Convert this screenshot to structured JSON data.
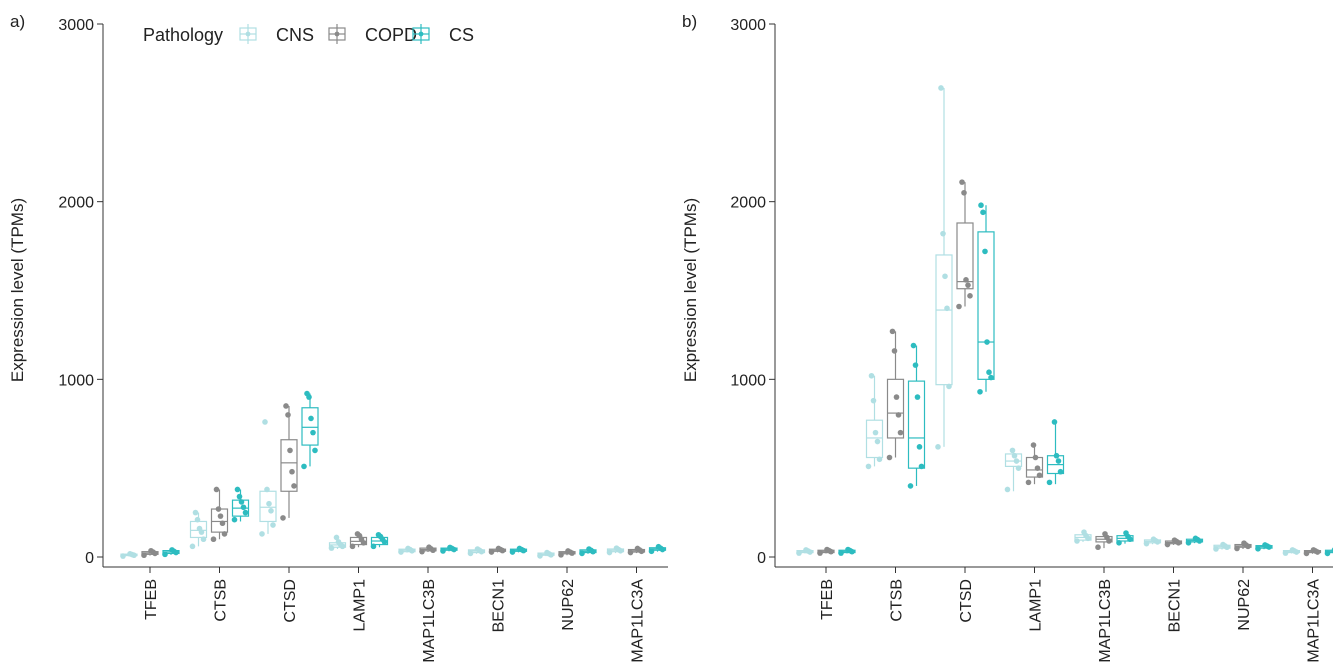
{
  "legend": {
    "title": "Pathology",
    "entries": [
      "CNS",
      "COPD",
      "CS"
    ]
  },
  "colors": {
    "CNS": "#b0dfe3",
    "COPD": "#8a8a8a",
    "CS": "#2dbcc0",
    "axis": "#333333"
  },
  "chart_data": [
    {
      "type": "box",
      "panel_label": "a)",
      "ylabel": "Expression level (TPMs)",
      "ylim": [
        0,
        3000
      ],
      "yticks": [
        "0",
        "1000",
        "2000",
        "3000"
      ],
      "categories": [
        "TFEB",
        "CTSB",
        "CTSD",
        "LAMP1",
        "MAP1LC3B",
        "BECN1",
        "NUP62",
        "MAP1LC3A"
      ],
      "series": [
        {
          "name": "CNS",
          "boxes": [
            {
              "q1": 8,
              "median": 12,
              "q3": 16,
              "whisker_low": 3,
              "whisker_high": 20,
              "points": [
                5,
                10,
                14,
                18
              ]
            },
            {
              "q1": 110,
              "median": 150,
              "q3": 200,
              "whisker_low": 60,
              "whisker_high": 250,
              "points": [
                60,
                100,
                140,
                160,
                210,
                250
              ]
            },
            {
              "q1": 200,
              "median": 280,
              "q3": 370,
              "whisker_low": 130,
              "whisker_high": 390,
              "points": [
                130,
                180,
                260,
                300,
                380,
                760
              ]
            },
            {
              "q1": 55,
              "median": 68,
              "q3": 80,
              "whisker_low": 45,
              "whisker_high": 90,
              "points": [
                50,
                60,
                70,
                85,
                110
              ]
            },
            {
              "q1": 30,
              "median": 38,
              "q3": 44,
              "whisker_low": 25,
              "whisker_high": 50,
              "points": [
                28,
                35,
                42,
                48
              ]
            },
            {
              "q1": 25,
              "median": 33,
              "q3": 40,
              "whisker_low": 18,
              "whisker_high": 48,
              "points": [
                20,
                30,
                38,
                45
              ]
            },
            {
              "q1": 10,
              "median": 15,
              "q3": 22,
              "whisker_low": 5,
              "whisker_high": 28,
              "points": [
                6,
                12,
                18,
                25
              ]
            },
            {
              "q1": 30,
              "median": 38,
              "q3": 45,
              "whisker_low": 22,
              "whisker_high": 52,
              "points": [
                25,
                35,
                42,
                50
              ]
            }
          ]
        },
        {
          "name": "COPD",
          "boxes": [
            {
              "q1": 15,
              "median": 22,
              "q3": 30,
              "whisker_low": 8,
              "whisker_high": 38,
              "points": [
                10,
                20,
                28,
                35
              ]
            },
            {
              "q1": 140,
              "median": 200,
              "q3": 270,
              "whisker_low": 100,
              "whisker_high": 380,
              "points": [
                100,
                130,
                190,
                230,
                270,
                380
              ]
            },
            {
              "q1": 370,
              "median": 530,
              "q3": 660,
              "whisker_low": 220,
              "whisker_high": 850,
              "points": [
                220,
                400,
                480,
                600,
                800,
                850
              ]
            },
            {
              "q1": 70,
              "median": 88,
              "q3": 110,
              "whisker_low": 55,
              "whisker_high": 130,
              "points": [
                60,
                80,
                100,
                120,
                130
              ]
            },
            {
              "q1": 35,
              "median": 42,
              "q3": 50,
              "whisker_low": 28,
              "whisker_high": 58,
              "points": [
                30,
                38,
                46,
                55
              ]
            },
            {
              "q1": 32,
              "median": 38,
              "q3": 44,
              "whisker_low": 26,
              "whisker_high": 50,
              "points": [
                28,
                36,
                42,
                48
              ]
            },
            {
              "q1": 18,
              "median": 24,
              "q3": 30,
              "whisker_low": 10,
              "whisker_high": 36,
              "points": [
                12,
                22,
                28,
                34
              ]
            },
            {
              "q1": 28,
              "median": 35,
              "q3": 42,
              "whisker_low": 22,
              "whisker_high": 50,
              "points": [
                25,
                32,
                40,
                48
              ]
            }
          ]
        },
        {
          "name": "CS",
          "boxes": [
            {
              "q1": 20,
              "median": 28,
              "q3": 36,
              "whisker_low": 12,
              "whisker_high": 44,
              "points": [
                15,
                25,
                32,
                40
              ]
            },
            {
              "q1": 230,
              "median": 275,
              "q3": 320,
              "whisker_low": 200,
              "whisker_high": 380,
              "points": [
                210,
                250,
                280,
                310,
                340,
                380
              ]
            },
            {
              "q1": 630,
              "median": 730,
              "q3": 840,
              "whisker_low": 510,
              "whisker_high": 920,
              "points": [
                510,
                600,
                700,
                780,
                900,
                920
              ]
            },
            {
              "q1": 70,
              "median": 90,
              "q3": 110,
              "whisker_low": 55,
              "whisker_high": 125,
              "points": [
                60,
                85,
                100,
                115,
                125
              ]
            },
            {
              "q1": 38,
              "median": 44,
              "q3": 50,
              "whisker_low": 32,
              "whisker_high": 56,
              "points": [
                34,
                42,
                48,
                54
              ]
            },
            {
              "q1": 32,
              "median": 38,
              "q3": 44,
              "whisker_low": 26,
              "whisker_high": 50,
              "points": [
                28,
                36,
                42,
                48
              ]
            },
            {
              "q1": 25,
              "median": 32,
              "q3": 40,
              "whisker_low": 18,
              "whisker_high": 48,
              "points": [
                20,
                30,
                38,
                45
              ]
            },
            {
              "q1": 38,
              "median": 45,
              "q3": 52,
              "whisker_low": 30,
              "whisker_high": 60,
              "points": [
                32,
                42,
                50,
                58
              ]
            }
          ]
        }
      ]
    },
    {
      "type": "box",
      "panel_label": "b)",
      "ylabel": "Expression level (TPMs)",
      "ylim": [
        0,
        3000
      ],
      "yticks": [
        "0",
        "1000",
        "2000",
        "3000"
      ],
      "categories": [
        "TFEB",
        "CTSB",
        "CTSD",
        "LAMP1",
        "MAP1LC3B",
        "BECN1",
        "NUP62",
        "MAP1LC3A"
      ],
      "series": [
        {
          "name": "CNS",
          "boxes": [
            {
              "q1": 25,
              "median": 30,
              "q3": 36,
              "whisker_low": 20,
              "whisker_high": 42,
              "points": [
                22,
                28,
                34,
                40
              ]
            },
            {
              "q1": 560,
              "median": 670,
              "q3": 770,
              "whisker_low": 510,
              "whisker_high": 1020,
              "points": [
                510,
                550,
                650,
                700,
                880,
                1020
              ]
            },
            {
              "q1": 970,
              "median": 1390,
              "q3": 1700,
              "whisker_low": 620,
              "whisker_high": 2640,
              "points": [
                620,
                960,
                1400,
                1580,
                1820,
                2640
              ]
            },
            {
              "q1": 510,
              "median": 540,
              "q3": 580,
              "whisker_low": 370,
              "whisker_high": 610,
              "points": [
                380,
                500,
                540,
                570,
                600
              ]
            },
            {
              "q1": 95,
              "median": 110,
              "q3": 125,
              "whisker_low": 85,
              "whisker_high": 150,
              "points": [
                90,
                105,
                120,
                140
              ]
            },
            {
              "q1": 80,
              "median": 88,
              "q3": 96,
              "whisker_low": 72,
              "whisker_high": 104,
              "points": [
                75,
                85,
                92,
                100
              ]
            },
            {
              "q1": 50,
              "median": 58,
              "q3": 66,
              "whisker_low": 42,
              "whisker_high": 74,
              "points": [
                45,
                55,
                62,
                70
              ]
            },
            {
              "q1": 25,
              "median": 30,
              "q3": 36,
              "whisker_low": 20,
              "whisker_high": 42,
              "points": [
                22,
                28,
                34,
                40
              ]
            }
          ]
        },
        {
          "name": "COPD",
          "boxes": [
            {
              "q1": 25,
              "median": 32,
              "q3": 38,
              "whisker_low": 20,
              "whisker_high": 44,
              "points": [
                22,
                30,
                36,
                42
              ]
            },
            {
              "q1": 670,
              "median": 810,
              "q3": 1000,
              "whisker_low": 560,
              "whisker_high": 1270,
              "points": [
                560,
                700,
                800,
                900,
                1160,
                1270
              ]
            },
            {
              "q1": 1510,
              "median": 1550,
              "q3": 1880,
              "whisker_low": 1410,
              "whisker_high": 2110,
              "points": [
                1410,
                1470,
                1530,
                1560,
                2050,
                2110
              ]
            },
            {
              "q1": 450,
              "median": 490,
              "q3": 560,
              "whisker_low": 410,
              "whisker_high": 630,
              "points": [
                420,
                460,
                500,
                560,
                630
              ]
            },
            {
              "q1": 85,
              "median": 100,
              "q3": 115,
              "whisker_low": 50,
              "whisker_high": 135,
              "points": [
                55,
                90,
                110,
                130
              ]
            },
            {
              "q1": 75,
              "median": 82,
              "q3": 90,
              "whisker_low": 68,
              "whisker_high": 98,
              "points": [
                70,
                80,
                88,
                95
              ]
            },
            {
              "q1": 55,
              "median": 62,
              "q3": 70,
              "whisker_low": 45,
              "whisker_high": 80,
              "points": [
                48,
                60,
                68,
                78
              ]
            },
            {
              "q1": 25,
              "median": 30,
              "q3": 36,
              "whisker_low": 18,
              "whisker_high": 42,
              "points": [
                20,
                28,
                34,
                40
              ]
            }
          ]
        },
        {
          "name": "CS",
          "boxes": [
            {
              "q1": 25,
              "median": 32,
              "q3": 38,
              "whisker_low": 20,
              "whisker_high": 44,
              "points": [
                22,
                30,
                36,
                42
              ]
            },
            {
              "q1": 500,
              "median": 670,
              "q3": 990,
              "whisker_low": 400,
              "whisker_high": 1190,
              "points": [
                400,
                510,
                620,
                900,
                1080,
                1190
              ]
            },
            {
              "q1": 1000,
              "median": 1210,
              "q3": 1830,
              "whisker_low": 930,
              "whisker_high": 1980,
              "points": [
                930,
                1010,
                1040,
                1210,
                1720,
                1940,
                1980
              ]
            },
            {
              "q1": 470,
              "median": 520,
              "q3": 570,
              "whisker_low": 410,
              "whisker_high": 760,
              "points": [
                420,
                480,
                540,
                570,
                760
              ]
            },
            {
              "q1": 90,
              "median": 105,
              "q3": 120,
              "whisker_low": 75,
              "whisker_high": 140,
              "points": [
                80,
                100,
                115,
                135
              ]
            },
            {
              "q1": 85,
              "median": 92,
              "q3": 100,
              "whisker_low": 78,
              "whisker_high": 108,
              "points": [
                80,
                90,
                98,
                105
              ]
            },
            {
              "q1": 50,
              "median": 58,
              "q3": 64,
              "whisker_low": 44,
              "whisker_high": 70,
              "points": [
                46,
                56,
                62,
                68
              ]
            },
            {
              "q1": 25,
              "median": 32,
              "q3": 38,
              "whisker_low": 18,
              "whisker_high": 42,
              "points": [
                20,
                30,
                36,
                40
              ]
            }
          ]
        }
      ]
    }
  ]
}
